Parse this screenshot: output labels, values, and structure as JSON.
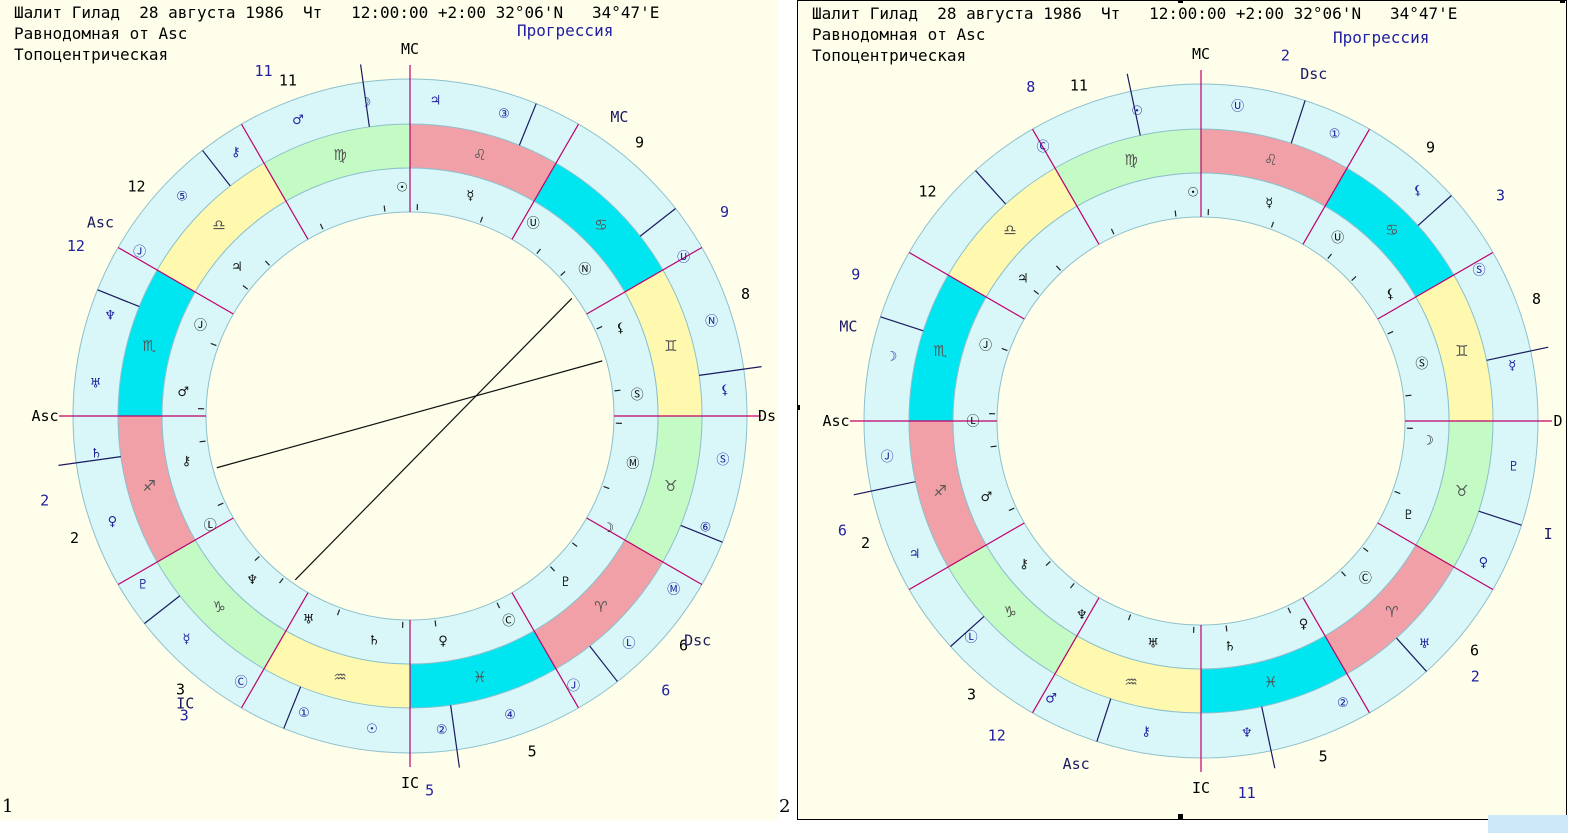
{
  "charts": [
    {
      "header": {
        "line1": "Шалит Гилад  28 августа 1986  Чт   12:00:00 +2:00 32°06'N   34°47'E",
        "line2": "Равнодомная от Asc",
        "line3": "Топоцентрическая"
      },
      "progression_label": "Прогрессия",
      "axes": {
        "mc": "MC",
        "ic": "IC",
        "asc": "Asc",
        "dsc": "Ds"
      },
      "inner_house_numbers": [
        "11",
        "12",
        "2",
        "3",
        "5",
        "6",
        "8",
        "9"
      ],
      "outer_house_labels": [
        "11",
        "12",
        "2",
        "3",
        "5",
        "6",
        "8",
        "9"
      ],
      "outer_axes": {
        "asc": "Asc",
        "mc": "MC",
        "dsc": "Dsc",
        "ic": "IC"
      },
      "signs": [
        "♌",
        "♋",
        "♊",
        "♉",
        "♈",
        "♓",
        "♒",
        "♑",
        "♐",
        "♏",
        "♎",
        "♍"
      ],
      "inner_planets": [
        "☉",
        "☿",
        "Ⓤ",
        "Ⓝ",
        "⚸",
        "Ⓢ",
        "Ⓜ",
        "☽",
        "♇",
        "Ⓒ",
        "♀",
        "♄",
        "♅",
        "♆",
        "Ⓛ",
        "⚷",
        "♂",
        "Ⓙ",
        "♃"
      ],
      "outer_planets": [
        "Ⓤ",
        "Ⓝ",
        "⚸",
        "Ⓢ",
        "⑥",
        "Ⓜ",
        "Ⓛ",
        "Ⓙ",
        "④",
        "②",
        "☉",
        "①",
        "Ⓒ",
        "☿",
        "♇",
        "♀",
        "♄",
        "♅",
        "♆",
        "Ⓙ",
        "⑤",
        "⚷",
        "♂",
        "☽",
        "♃",
        "③"
      ],
      "panel_number": "1"
    },
    {
      "header": {
        "line1": "Шалит Гилад  28 августа 1986  Чт   12:00:00 +2:00 32°06'N   34°47'E",
        "line2": "Равнодомная от Asc",
        "line3": "Топоцентрическая"
      },
      "progression_label": "Прогрессия",
      "axes": {
        "mc": "MC",
        "ic": "IC",
        "asc": "Asc",
        "dsc": "D"
      },
      "inner_house_numbers": [
        "11",
        "12",
        "2",
        "3",
        "5",
        "6",
        "8",
        "9"
      ],
      "outer_house_labels": [
        "8",
        "9",
        "6",
        "12",
        "11",
        "2",
        "12",
        "3",
        "2"
      ],
      "outer_axes": {
        "dsc": "Dsc",
        "mc": "MC",
        "asc": "Asc",
        "ic": "I"
      },
      "signs": [
        "♌",
        "♋",
        "♊",
        "♉",
        "♈",
        "♓",
        "♒",
        "♑",
        "♐",
        "♏",
        "♎",
        "♍"
      ],
      "inner_planets": [
        "☉",
        "☿",
        "Ⓤ",
        "⚸",
        "Ⓢ",
        "☽",
        "♇",
        "Ⓒ",
        "♀",
        "♄",
        "♅",
        "♆",
        "⚷",
        "♂",
        "Ⓛ",
        "Ⓙ",
        "♃"
      ],
      "outer_planets": [
        "Ⓒ",
        "☉",
        "Ⓤ",
        "①",
        "⚸",
        "Ⓢ",
        "☿",
        "♇",
        "♀",
        "♅",
        "②",
        "♆",
        "⚷",
        "♂",
        "Ⓛ",
        "♃",
        "Ⓙ",
        "☽"
      ],
      "panel_number": "2"
    }
  ],
  "colors": {
    "panel_bg": "#fffeea",
    "ring_light": "#d9f7f9",
    "house_line": "#c0006a",
    "fire": "#f0a0a6",
    "water": "#00e6f0",
    "air": "#fff9b0",
    "earth": "#c4fac4",
    "axis_outer_line": "#1a1a60",
    "label_blue": "#2020a0"
  }
}
